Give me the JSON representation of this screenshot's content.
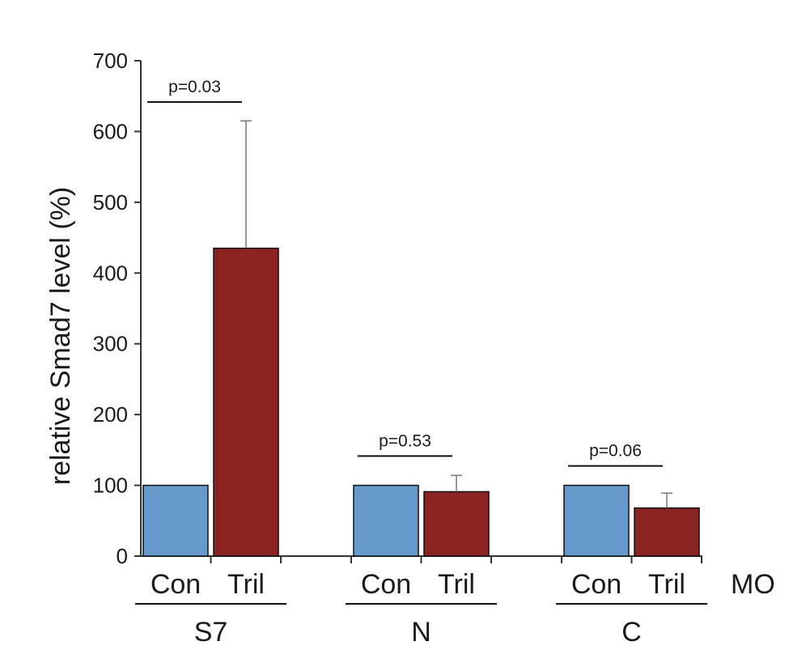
{
  "chart_data": {
    "type": "bar",
    "ylabel": "relative Smad7 level (%)",
    "ylim": [
      0,
      700
    ],
    "yticks": [
      0,
      100,
      200,
      300,
      400,
      500,
      600,
      700
    ],
    "grid": false,
    "axis_suffix_label": "MO",
    "groups": [
      {
        "name": "S7",
        "bars": [
          {
            "label": "Con",
            "value": 100,
            "error": 0,
            "color": "#6699cc"
          },
          {
            "label": "Tril",
            "value": 435,
            "error": 180,
            "color": "#8b2323"
          }
        ],
        "pvalue": "p=0.03"
      },
      {
        "name": "N",
        "bars": [
          {
            "label": "Con",
            "value": 100,
            "error": 0,
            "color": "#6699cc"
          },
          {
            "label": "Tril",
            "value": 91,
            "error": 23,
            "color": "#8b2323"
          }
        ],
        "pvalue": "p=0.53"
      },
      {
        "name": "C",
        "bars": [
          {
            "label": "Con",
            "value": 100,
            "error": 0,
            "color": "#6699cc"
          },
          {
            "label": "Tril",
            "value": 68,
            "error": 21,
            "color": "#8b2323"
          }
        ],
        "pvalue": "p=0.06"
      }
    ]
  }
}
